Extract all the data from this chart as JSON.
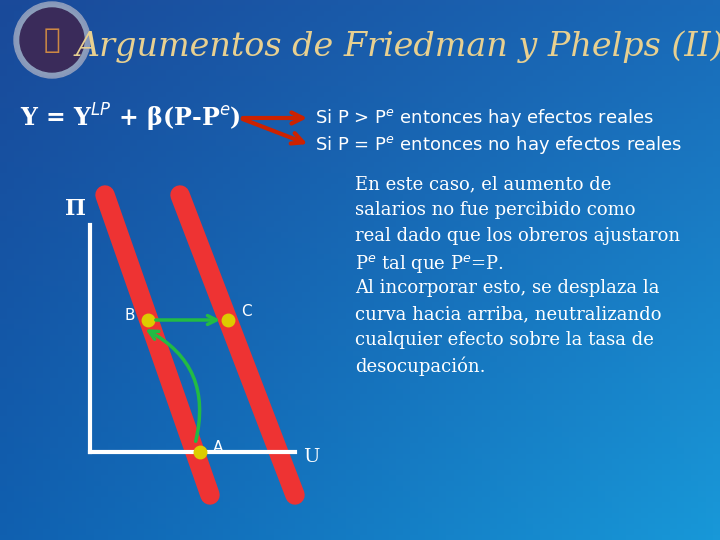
{
  "title": "Argumentos de Friedman y Phelps (II)",
  "title_color": "#E8D090",
  "title_fontsize": 24,
  "bg_color_tl": "#1A4A9A",
  "bg_color_tr": "#1A6AB8",
  "bg_color_bl": "#1060B0",
  "bg_color_br": "#1898D8",
  "formula": "Y = Y$^{LP}$ + β(P-P$^e$)",
  "formula_color": "#FFFFFF",
  "formula_fontsize": 17,
  "arrow1_text": "Si P > P$^e$ entonces hay efectos reales",
  "arrow2_text": "Si P = P$^e$ entonces no hay efectos reales",
  "text_color": "#FFFFFF",
  "arrows_fontsize": 13,
  "red_arrow_color": "#CC2200",
  "pi_label": "Π",
  "u_label": "U",
  "point_b": "B",
  "point_c": "C",
  "point_a": "A",
  "body_text": "En este caso, el aumento de\nsalarios no fue percibido como\nreal dado que los obreros ajustaron\nP$^e$ tal que P$^e$=P.\nAl incorporar esto, se desplaza la\ncurva hacia arriba, neutralizando\ncualquier efecto sobre la tasa de\ndesocupación.",
  "body_fontsize": 13,
  "line_color": "#EE3333",
  "axis_color": "#FFFFFF",
  "point_color": "#DDCC00",
  "green_color": "#22BB44",
  "logo_outer_color": "#8899BB",
  "logo_inner_color": "#6B1A1A",
  "logo_bg_color": "#3A1A1A"
}
